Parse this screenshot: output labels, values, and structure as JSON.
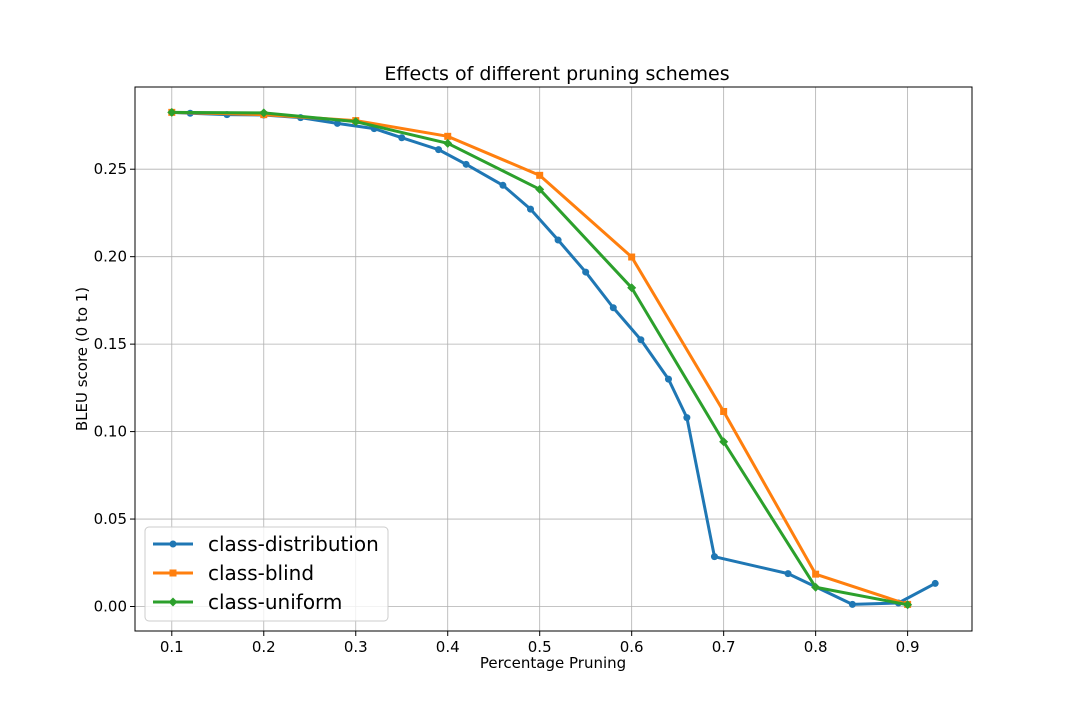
{
  "chart_data": {
    "type": "line",
    "title": "Effects of different pruning schemes",
    "xlabel": "Percentage Pruning",
    "ylabel": "BLEU score (0 to 1)",
    "xlim": [
      0.06,
      0.97
    ],
    "ylim": [
      -0.014,
      0.297
    ],
    "xticks": [
      0.1,
      0.2,
      0.3,
      0.4,
      0.5,
      0.6,
      0.7,
      0.8,
      0.9
    ],
    "xtick_labels": [
      "0.1",
      "0.2",
      "0.3",
      "0.4",
      "0.5",
      "0.6",
      "0.7",
      "0.8",
      "0.9"
    ],
    "yticks": [
      0.0,
      0.05,
      0.1,
      0.15,
      0.2,
      0.25
    ],
    "ytick_labels": [
      "0.00",
      "0.05",
      "0.10",
      "0.15",
      "0.20",
      "0.25"
    ],
    "grid": true,
    "legend_position": "lower-left",
    "series": [
      {
        "name": "class-distribution",
        "color": "#1f77b4",
        "marker": "circle",
        "points": [
          [
            0.1,
            0.2825
          ],
          [
            0.12,
            0.282
          ],
          [
            0.16,
            0.2812
          ],
          [
            0.2,
            0.281
          ],
          [
            0.24,
            0.2795
          ],
          [
            0.28,
            0.2762
          ],
          [
            0.32,
            0.2732
          ],
          [
            0.35,
            0.268
          ],
          [
            0.39,
            0.2612
          ],
          [
            0.42,
            0.2528
          ],
          [
            0.46,
            0.2408
          ],
          [
            0.49,
            0.2272
          ],
          [
            0.52,
            0.2095
          ],
          [
            0.55,
            0.1912
          ],
          [
            0.58,
            0.1708
          ],
          [
            0.61,
            0.1525
          ],
          [
            0.64,
            0.13
          ],
          [
            0.66,
            0.108
          ],
          [
            0.69,
            0.0285
          ],
          [
            0.77,
            0.0188
          ],
          [
            0.84,
            0.0012
          ],
          [
            0.89,
            0.002
          ],
          [
            0.93,
            0.0132
          ]
        ]
      },
      {
        "name": "class-blind",
        "color": "#ff7f0e",
        "marker": "square",
        "points": [
          [
            0.1,
            0.2825
          ],
          [
            0.2,
            0.2812
          ],
          [
            0.3,
            0.2778
          ],
          [
            0.4,
            0.2688
          ],
          [
            0.5,
            0.2465
          ],
          [
            0.6,
            0.1998
          ],
          [
            0.7,
            0.1115
          ],
          [
            0.8,
            0.0185
          ],
          [
            0.9,
            0.0012
          ]
        ]
      },
      {
        "name": "class-uniform",
        "color": "#2ca02c",
        "marker": "diamond",
        "points": [
          [
            0.1,
            0.2825
          ],
          [
            0.2,
            0.2822
          ],
          [
            0.3,
            0.2772
          ],
          [
            0.4,
            0.2648
          ],
          [
            0.5,
            0.2385
          ],
          [
            0.6,
            0.1822
          ],
          [
            0.7,
            0.0942
          ],
          [
            0.8,
            0.011
          ],
          [
            0.9,
            0.001
          ]
        ]
      }
    ]
  }
}
